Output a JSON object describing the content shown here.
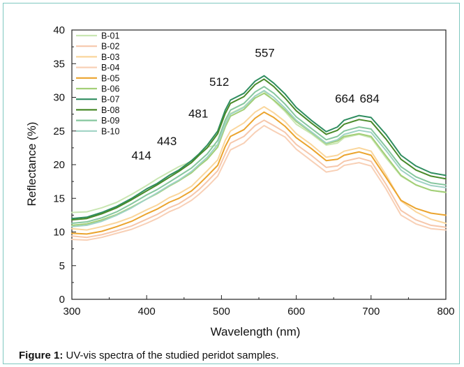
{
  "caption": {
    "label": "Figure 1:",
    "text": " UV-vis spectra of the studied peridot samples."
  },
  "chart_data": {
    "type": "line",
    "xlabel": "Wavelength (nm)",
    "ylabel": "Reflectance (%)",
    "xlim": [
      300,
      800
    ],
    "ylim": [
      0,
      40
    ],
    "xticks": [
      300,
      400,
      500,
      600,
      700,
      800
    ],
    "yticks": [
      0,
      5,
      10,
      15,
      20,
      25,
      30,
      35,
      40
    ],
    "grid": false,
    "legend_position": "top-left",
    "annotations": [
      {
        "text": "414",
        "x": 393,
        "y": 20.8
      },
      {
        "text": "443",
        "x": 427,
        "y": 22.9
      },
      {
        "text": "481",
        "x": 469,
        "y": 27.0
      },
      {
        "text": "512",
        "x": 497,
        "y": 31.7
      },
      {
        "text": "557",
        "x": 558,
        "y": 36.0
      },
      {
        "text": "664",
        "x": 665,
        "y": 29.2
      },
      {
        "text": "684",
        "x": 698,
        "y": 29.2
      }
    ],
    "x": [
      300,
      320,
      340,
      360,
      380,
      400,
      414,
      430,
      443,
      460,
      470,
      481,
      495,
      505,
      512,
      530,
      545,
      557,
      570,
      585,
      600,
      620,
      640,
      655,
      664,
      684,
      700,
      720,
      740,
      760,
      780,
      800
    ],
    "series": [
      {
        "name": "B-01",
        "color": "#c9e6b2",
        "values": [
          12.9,
          13.0,
          13.6,
          14.4,
          15.6,
          16.9,
          17.9,
          18.9,
          19.7,
          20.5,
          21.6,
          22.6,
          22.9,
          26.4,
          27.6,
          28.6,
          30.2,
          30.9,
          29.5,
          27.9,
          26.0,
          24.6,
          22.9,
          23.2,
          24.0,
          24.5,
          24.0,
          21.0,
          18.3,
          17.0,
          16.2,
          15.9
        ]
      },
      {
        "name": "B-02",
        "color": "#f6c7ab",
        "values": [
          9.4,
          9.2,
          9.6,
          10.2,
          10.9,
          11.9,
          12.6,
          13.6,
          14.2,
          15.4,
          16.3,
          17.5,
          19.1,
          21.6,
          23.2,
          24.2,
          25.8,
          26.6,
          25.8,
          24.8,
          23.0,
          21.4,
          19.6,
          19.8,
          20.5,
          21.0,
          20.5,
          17.1,
          13.2,
          11.8,
          11.0,
          10.7
        ]
      },
      {
        "name": "B-03",
        "color": "#fad69c",
        "values": [
          10.5,
          10.3,
          10.8,
          11.4,
          12.2,
          13.3,
          14.0,
          15.1,
          15.7,
          16.8,
          17.9,
          19.1,
          20.7,
          23.6,
          25.0,
          26.2,
          27.8,
          28.6,
          27.7,
          26.4,
          24.6,
          23.0,
          21.1,
          21.4,
          22.0,
          22.5,
          22.0,
          18.5,
          14.6,
          13.0,
          11.9,
          11.3
        ]
      },
      {
        "name": "B-04",
        "color": "#f8d0b6",
        "values": [
          8.9,
          8.8,
          9.2,
          9.8,
          10.4,
          11.3,
          12.0,
          13.0,
          13.6,
          14.7,
          15.6,
          16.7,
          18.3,
          20.6,
          22.2,
          23.2,
          24.8,
          25.8,
          25.0,
          24.1,
          22.3,
          20.6,
          18.9,
          19.2,
          19.9,
          20.3,
          19.8,
          16.4,
          12.5,
          11.2,
          10.5,
          10.3
        ]
      },
      {
        "name": "B-05",
        "color": "#eba42e",
        "values": [
          9.8,
          9.7,
          10.1,
          10.8,
          11.6,
          12.7,
          13.4,
          14.4,
          15.0,
          16.1,
          17.1,
          18.3,
          19.9,
          22.7,
          24.2,
          25.2,
          26.9,
          27.8,
          27.0,
          25.7,
          24.0,
          22.4,
          20.6,
          20.8,
          21.4,
          21.9,
          21.4,
          18.1,
          14.7,
          13.5,
          12.8,
          12.5
        ]
      },
      {
        "name": "B-06",
        "color": "#a3cf77",
        "values": [
          11.0,
          11.2,
          11.8,
          12.6,
          13.7,
          14.9,
          15.7,
          16.8,
          17.6,
          18.8,
          19.8,
          20.8,
          22.6,
          25.6,
          27.2,
          28.2,
          29.9,
          30.6,
          29.6,
          28.1,
          26.4,
          24.8,
          23.1,
          23.5,
          24.2,
          24.6,
          24.2,
          21.3,
          18.4,
          17.0,
          16.2,
          15.9
        ]
      },
      {
        "name": "B-07",
        "color": "#2f8d60",
        "values": [
          12.0,
          12.2,
          12.9,
          13.8,
          15.0,
          16.4,
          17.2,
          18.4,
          19.2,
          20.6,
          21.6,
          22.9,
          25.0,
          28.1,
          29.6,
          30.6,
          32.4,
          33.2,
          32.1,
          30.5,
          28.5,
          26.6,
          24.9,
          25.6,
          26.6,
          27.3,
          27.0,
          24.5,
          21.4,
          19.8,
          18.8,
          18.4
        ]
      },
      {
        "name": "B-08",
        "color": "#4a8a2a",
        "values": [
          11.8,
          12.0,
          12.7,
          13.6,
          14.8,
          16.1,
          17.0,
          18.1,
          19.0,
          20.3,
          21.4,
          22.5,
          24.6,
          27.6,
          29.1,
          30.1,
          31.9,
          32.7,
          31.6,
          29.9,
          28.0,
          26.2,
          24.5,
          25.1,
          26.0,
          26.7,
          26.4,
          23.8,
          20.8,
          19.2,
          18.3,
          17.9
        ]
      },
      {
        "name": "B-09",
        "color": "#86c79e",
        "values": [
          11.3,
          11.5,
          12.1,
          13.0,
          14.2,
          15.5,
          16.3,
          17.4,
          18.3,
          19.5,
          20.5,
          21.6,
          23.6,
          26.6,
          28.1,
          29.1,
          30.8,
          31.6,
          30.6,
          29.0,
          27.1,
          25.4,
          23.7,
          24.2,
          25.0,
          25.6,
          25.3,
          22.6,
          19.7,
          18.2,
          17.3,
          17.0
        ]
      },
      {
        "name": "B-10",
        "color": "#9fd2c4",
        "values": [
          10.8,
          11.0,
          11.6,
          12.5,
          13.6,
          14.9,
          15.8,
          16.9,
          17.7,
          19.0,
          20.0,
          21.1,
          23.0,
          26.0,
          27.5,
          28.5,
          30.2,
          31.0,
          30.0,
          28.4,
          26.6,
          24.9,
          23.2,
          23.7,
          24.5,
          25.1,
          24.8,
          22.1,
          19.2,
          17.7,
          16.9,
          16.6
        ]
      }
    ]
  }
}
